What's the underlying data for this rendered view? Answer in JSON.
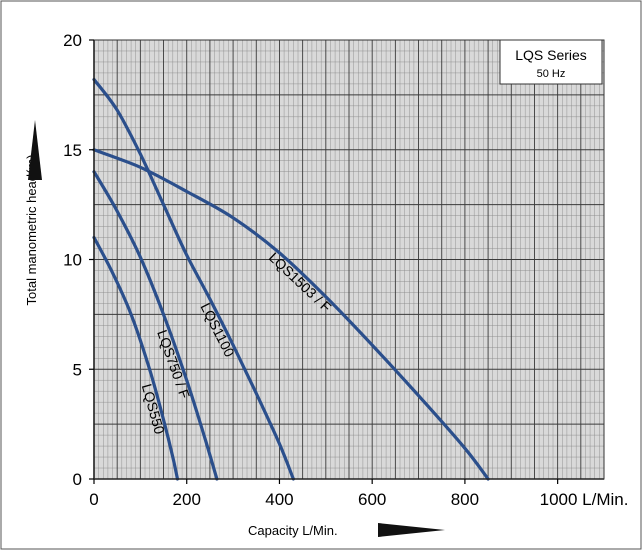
{
  "chart_data": {
    "type": "line",
    "xlabel": "Capacity L/Min.",
    "ylabel": "Total manometric head(m)",
    "xlim": [
      0,
      1100
    ],
    "ylim": [
      0,
      20
    ],
    "x_ticks": [
      {
        "value": 0,
        "label": "0"
      },
      {
        "value": 200,
        "label": "200"
      },
      {
        "value": 400,
        "label": "400"
      },
      {
        "value": 600,
        "label": "600"
      },
      {
        "value": 800,
        "label": "800"
      },
      {
        "value": 1000,
        "label": "1000 L/Min."
      }
    ],
    "y_ticks": [
      {
        "value": 0,
        "label": "0"
      },
      {
        "value": 5,
        "label": "5"
      },
      {
        "value": 10,
        "label": "10"
      },
      {
        "value": 15,
        "label": "15"
      },
      {
        "value": 20,
        "label": "20"
      }
    ],
    "grid": true,
    "legend_box": {
      "title": "LQS Series",
      "subtitle": "50 Hz",
      "placement": "top-right"
    },
    "series": [
      {
        "name": "LQS550",
        "x": [
          0,
          40,
          80,
          120,
          150,
          170,
          180
        ],
        "y": [
          11,
          9.4,
          7.5,
          5,
          2.7,
          1.0,
          0
        ]
      },
      {
        "name": "LQS750 / F",
        "x": [
          0,
          50,
          100,
          150,
          200,
          240,
          265
        ],
        "y": [
          14,
          12.2,
          10.1,
          7.5,
          4.5,
          1.8,
          0
        ]
      },
      {
        "name": "LQS1100",
        "x": [
          0,
          50,
          100,
          150,
          200,
          250,
          300,
          350,
          400,
          430
        ],
        "y": [
          18.2,
          16.8,
          14.8,
          12.5,
          10.2,
          8.2,
          6.1,
          3.9,
          1.6,
          0
        ]
      },
      {
        "name": "LQS1503 / F",
        "x": [
          0,
          100,
          200,
          300,
          400,
          500,
          600,
          700,
          800,
          850
        ],
        "y": [
          15,
          14.2,
          13.1,
          11.9,
          10.3,
          8.3,
          6.1,
          3.8,
          1.4,
          0
        ]
      }
    ],
    "colors": {
      "curve": "#2b4f8c",
      "axis": "#000000",
      "grid_major": "#3a3a3a",
      "grid_minor": "#8a8a8a",
      "plot_bg": "#d9d9d9"
    }
  }
}
